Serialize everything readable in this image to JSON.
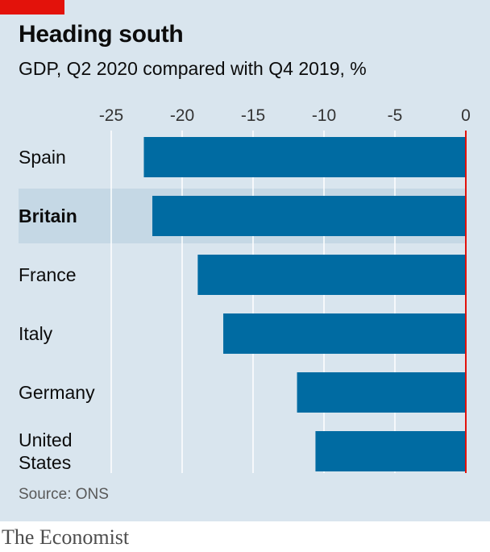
{
  "header": {
    "title": "Heading south",
    "subtitle": "GDP, Q2 2020 compared with Q4 2019, %"
  },
  "colors": {
    "background": "#d9e5ee",
    "bar": "#006ba2",
    "highlight_band": "#c5d8e5",
    "zero_line": "#e3120b",
    "grid": "#ffffff",
    "tag": "#e3120b"
  },
  "chart_data": {
    "type": "bar",
    "orientation": "horizontal",
    "title": "Heading south",
    "subtitle": "GDP, Q2 2020 compared with Q4 2019, %",
    "categories": [
      "Spain",
      "Britain",
      "France",
      "Italy",
      "Germany",
      "United States"
    ],
    "category_lines": [
      [
        "Spain"
      ],
      [
        "Britain"
      ],
      [
        "France"
      ],
      [
        "Italy"
      ],
      [
        "Germany"
      ],
      [
        "United",
        "States"
      ]
    ],
    "values": [
      -22.7,
      -22.1,
      -18.9,
      -17.1,
      -11.9,
      -10.6
    ],
    "highlight": "Britain",
    "xlim": [
      -25,
      0
    ],
    "ticks": [
      -25,
      -20,
      -15,
      -10,
      -5,
      0
    ],
    "tick_labels": [
      "-25",
      "-20",
      "-15",
      "-10",
      "-5",
      "0"
    ],
    "axis_position": "top",
    "grid": true
  },
  "footer": {
    "source": "Source: ONS",
    "brand": "The Economist"
  }
}
